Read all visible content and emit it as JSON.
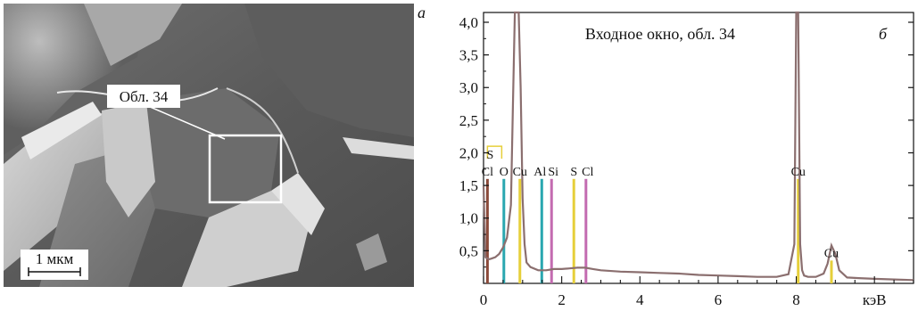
{
  "panel_a": {
    "letter": "а",
    "region_label": "Обл. 34",
    "scale_bar_label": "1 мкм"
  },
  "chart_data": {
    "type": "line",
    "title": "Входное окно, обл. 34",
    "panel_letter": "б",
    "xlabel": "кэВ",
    "ylabel": "",
    "xlim": [
      0,
      11
    ],
    "ylim": [
      0,
      4.15
    ],
    "x_ticks": [
      0,
      2,
      4,
      6,
      8,
      10
    ],
    "x_tick_labels": [
      "0",
      "2",
      "4",
      "6",
      "8",
      "кэВ"
    ],
    "y_ticks": [
      0.5,
      1.0,
      1.5,
      2.0,
      2.5,
      3.0,
      3.5,
      4.0
    ],
    "y_tick_labels": [
      "0,5",
      "1,0",
      "1,5",
      "2,0",
      "2,5",
      "3,0",
      "3,5",
      "4,0"
    ],
    "grid": false,
    "spectrum_color": "#8b6f6f",
    "series": [
      {
        "x": [
          0.0,
          0.05,
          0.1,
          0.15,
          0.2,
          0.3,
          0.4,
          0.5,
          0.6,
          0.7,
          0.75,
          0.8,
          0.85,
          0.9,
          0.95,
          1.0,
          1.05,
          1.1,
          1.2,
          1.4,
          1.6,
          1.8,
          2.0,
          2.2,
          2.4,
          2.6,
          2.8,
          3.0,
          3.5,
          4.0,
          4.5,
          5.0,
          5.5,
          6.0,
          6.5,
          7.0,
          7.5,
          7.8,
          7.95,
          8.0,
          8.05,
          8.1,
          8.15,
          8.2,
          8.3,
          8.5,
          8.7,
          8.8,
          8.9,
          9.0,
          9.1,
          9.3,
          9.6,
          10.0,
          10.5,
          11.0
        ],
        "y": [
          1.5,
          0.4,
          0.38,
          0.37,
          0.38,
          0.4,
          0.45,
          0.55,
          0.7,
          1.2,
          2.7,
          4.15,
          4.15,
          4.15,
          3.0,
          1.3,
          0.6,
          0.32,
          0.25,
          0.2,
          0.2,
          0.22,
          0.22,
          0.23,
          0.24,
          0.24,
          0.22,
          0.2,
          0.18,
          0.17,
          0.16,
          0.15,
          0.13,
          0.12,
          0.11,
          0.1,
          0.1,
          0.14,
          0.6,
          4.15,
          4.15,
          0.6,
          0.2,
          0.12,
          0.1,
          0.1,
          0.15,
          0.3,
          0.58,
          0.45,
          0.2,
          0.09,
          0.08,
          0.07,
          0.06,
          0.05
        ]
      }
    ],
    "element_lines": [
      {
        "label": "Cl",
        "x": 0.1,
        "height": 1.6,
        "color": "#8b4a3a"
      },
      {
        "label": "O",
        "x": 0.52,
        "height": 1.6,
        "color": "#2aa7b0"
      },
      {
        "label": "Cu",
        "x": 0.93,
        "height": 1.6,
        "color": "#e6cf3a"
      },
      {
        "label": "Al",
        "x": 1.49,
        "height": 1.6,
        "color": "#2aa7b0"
      },
      {
        "label": "Si",
        "x": 1.74,
        "height": 1.6,
        "color": "#c36bb0"
      },
      {
        "label": "S",
        "x": 2.31,
        "height": 1.6,
        "color": "#e6cf3a"
      },
      {
        "label": "Cl",
        "x": 2.62,
        "height": 1.6,
        "color": "#c36bb0"
      },
      {
        "label": "Cu",
        "x": 8.05,
        "height": 1.6,
        "color": "#e6cf3a"
      },
      {
        "label": "Cu",
        "x": 8.9,
        "height": 0.35,
        "color": "#e6cf3a"
      }
    ],
    "extra_label": {
      "label": "S",
      "x": 0.1,
      "y": 2.1,
      "color": "#e6cf3a"
    }
  }
}
